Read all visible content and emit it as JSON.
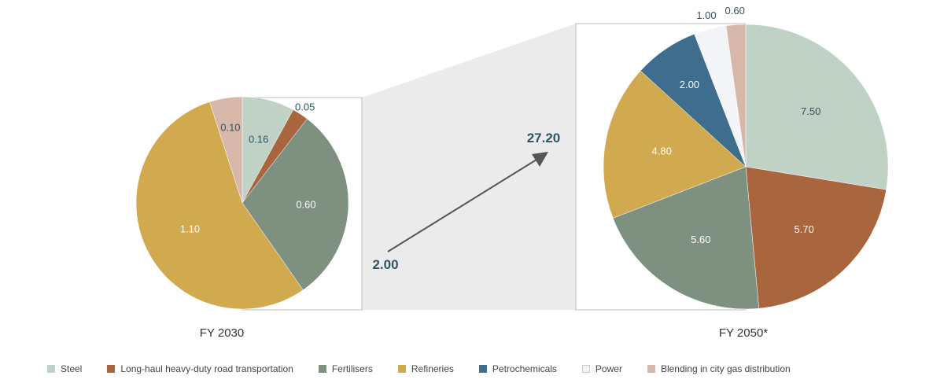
{
  "chart_data": {
    "type": "pie",
    "legend_position": "bottom",
    "total_start_label": "2.00",
    "total_end_label": "27.20",
    "categories": [
      "Steel",
      "Long-haul heavy-duty road transportation",
      "Fertilisers",
      "Refineries",
      "Petrochemicals",
      "Power",
      "Blending in city gas distribution"
    ],
    "colors": [
      "#c0d2c5",
      "#a9663e",
      "#7e9080",
      "#d1a94f",
      "#3e6d8e",
      "#f3f4f7",
      "#d7b7a9"
    ],
    "charts": [
      {
        "title": "FY 2030",
        "slices": [
          {
            "category": "Steel",
            "value": 0.16,
            "label": "0.16"
          },
          {
            "category": "Long-haul heavy-duty road transportation",
            "value": 0.05,
            "label": "0.05"
          },
          {
            "category": "Fertilisers",
            "value": 0.6,
            "label": "0.60"
          },
          {
            "category": "Refineries",
            "value": 1.1,
            "label": "1.10"
          },
          {
            "category": "Blending in city gas distribution",
            "value": 0.1,
            "label": "0.10"
          }
        ]
      },
      {
        "title": "FY 2050*",
        "slices": [
          {
            "category": "Steel",
            "value": 7.5,
            "label": "7.50"
          },
          {
            "category": "Long-haul heavy-duty road transportation",
            "value": 5.7,
            "label": "5.70"
          },
          {
            "category": "Fertilisers",
            "value": 5.6,
            "label": "5.60"
          },
          {
            "category": "Refineries",
            "value": 4.8,
            "label": "4.80"
          },
          {
            "category": "Petrochemicals",
            "value": 2.0,
            "label": "2.00"
          },
          {
            "category": "Power",
            "value": 1.0,
            "label": "1.00"
          },
          {
            "category": "Blending in city gas distribution",
            "value": 0.6,
            "label": "0.60"
          }
        ]
      }
    ]
  }
}
